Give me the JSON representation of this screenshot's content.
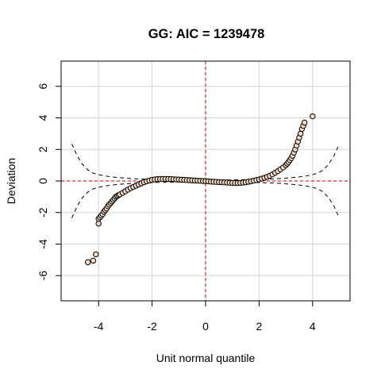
{
  "chart_data": {
    "type": "scatter",
    "title": "GG: AIC =  1239478",
    "xlabel": "Unit normal quantile",
    "ylabel": "Deviation",
    "xlim": [
      -5.4,
      5.4
    ],
    "ylim": [
      -7.6,
      7.6
    ],
    "x_ticks": [
      -4,
      -2,
      0,
      2,
      4
    ],
    "y_ticks": [
      -6,
      -4,
      -2,
      0,
      2,
      4,
      6
    ],
    "x_tick_labels": [
      "-4",
      "-2",
      "0",
      "2",
      "4"
    ],
    "y_tick_labels": [
      "-6",
      "-4",
      "-2",
      "0",
      "2",
      "4",
      "6"
    ],
    "grid": true,
    "grid_x": [
      -4,
      -2,
      0,
      2,
      4
    ],
    "grid_y": [
      -6,
      -4,
      -2,
      0,
      2,
      4,
      6
    ],
    "reference_lines": {
      "x": 0,
      "y": 0,
      "color": "#cc0000"
    },
    "point_style": {
      "fill": "#f5d9c0",
      "stroke": "#000000"
    },
    "envelope": {
      "x": [
        -5.0,
        -4.8,
        -4.6,
        -4.4,
        -4.2,
        -4.0,
        -3.8,
        -3.6,
        -3.4,
        -3.2,
        -3.0,
        -2.8,
        -2.6,
        -2.4,
        -2.2,
        -2.0,
        -1.5,
        -1.0,
        -0.5,
        0.0,
        0.5,
        1.0,
        1.5,
        2.0,
        2.2,
        2.4,
        2.6,
        2.8,
        3.0,
        3.2,
        3.4,
        3.6,
        3.8,
        4.0,
        4.2,
        4.4,
        4.6,
        4.8,
        5.0
      ],
      "upper": [
        2.35,
        1.6,
        1.05,
        0.7,
        0.5,
        0.4,
        0.33,
        0.28,
        0.24,
        0.21,
        0.18,
        0.16,
        0.14,
        0.12,
        0.11,
        0.1,
        0.08,
        0.07,
        0.06,
        0.06,
        0.06,
        0.07,
        0.08,
        0.1,
        0.11,
        0.12,
        0.14,
        0.16,
        0.18,
        0.21,
        0.24,
        0.28,
        0.33,
        0.4,
        0.5,
        0.7,
        1.05,
        1.6,
        2.35
      ],
      "lower": [
        -2.35,
        -1.6,
        -1.05,
        -0.7,
        -0.5,
        -0.4,
        -0.33,
        -0.28,
        -0.24,
        -0.21,
        -0.18,
        -0.16,
        -0.14,
        -0.12,
        -0.11,
        -0.1,
        -0.08,
        -0.07,
        -0.06,
        -0.06,
        -0.06,
        -0.07,
        -0.08,
        -0.1,
        -0.11,
        -0.12,
        -0.14,
        -0.16,
        -0.18,
        -0.21,
        -0.24,
        -0.28,
        -0.33,
        -0.4,
        -0.5,
        -0.7,
        -1.05,
        -1.6,
        -2.35
      ]
    },
    "points": {
      "x": [
        -4.4,
        -4.2,
        -4.1,
        -4.0,
        -4.0,
        -3.95,
        -3.9,
        -3.85,
        -3.8,
        -3.75,
        -3.7,
        -3.65,
        -3.6,
        -3.55,
        -3.5,
        -3.45,
        -3.4,
        -3.35,
        -3.3,
        -3.25,
        -3.2,
        -3.1,
        -3.0,
        -2.9,
        -2.8,
        -2.7,
        -2.6,
        -2.5,
        -2.4,
        -2.3,
        -2.2,
        -2.1,
        -2.0,
        -1.9,
        -1.8,
        -1.7,
        -1.6,
        -1.5,
        -1.4,
        -1.3,
        -1.2,
        -1.1,
        -1.0,
        -0.9,
        -0.8,
        -0.7,
        -0.6,
        -0.5,
        -0.4,
        -0.3,
        -0.2,
        -0.1,
        0.0,
        0.1,
        0.2,
        0.3,
        0.4,
        0.5,
        0.6,
        0.7,
        0.8,
        0.9,
        1.0,
        1.1,
        1.2,
        1.3,
        1.4,
        1.5,
        1.6,
        1.7,
        1.8,
        1.9,
        2.0,
        2.1,
        2.2,
        2.3,
        2.4,
        2.5,
        2.6,
        2.7,
        2.8,
        2.9,
        3.0,
        3.05,
        3.1,
        3.15,
        3.2,
        3.25,
        3.3,
        3.35,
        3.4,
        3.45,
        3.5,
        3.55,
        3.6,
        3.65,
        3.7,
        4.0
      ],
      "y": [
        -5.15,
        -5.05,
        -4.65,
        -2.7,
        -2.4,
        -2.3,
        -2.2,
        -2.1,
        -1.95,
        -1.85,
        -1.75,
        -1.6,
        -1.5,
        -1.4,
        -1.3,
        -1.2,
        -1.1,
        -1.0,
        -0.95,
        -0.9,
        -0.85,
        -0.75,
        -0.65,
        -0.55,
        -0.45,
        -0.38,
        -0.3,
        -0.22,
        -0.15,
        -0.08,
        -0.02,
        0.03,
        0.07,
        0.1,
        0.12,
        0.13,
        0.13,
        0.13,
        0.12,
        0.12,
        0.11,
        0.1,
        0.09,
        0.08,
        0.07,
        0.06,
        0.05,
        0.04,
        0.03,
        0.02,
        0.01,
        0.0,
        -0.01,
        -0.02,
        -0.04,
        -0.05,
        -0.06,
        -0.07,
        -0.08,
        -0.09,
        -0.1,
        -0.11,
        -0.12,
        -0.13,
        -0.13,
        -0.12,
        -0.1,
        -0.08,
        -0.05,
        -0.02,
        0.02,
        0.06,
        0.1,
        0.15,
        0.2,
        0.26,
        0.33,
        0.42,
        0.52,
        0.62,
        0.74,
        0.86,
        1.0,
        1.1,
        1.2,
        1.32,
        1.45,
        1.6,
        1.8,
        2.0,
        2.25,
        2.5,
        2.75,
        3.0,
        3.3,
        3.5,
        3.7,
        4.1
      ]
    }
  }
}
